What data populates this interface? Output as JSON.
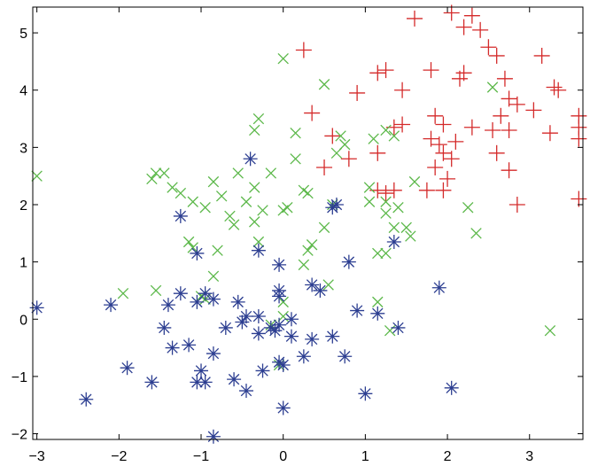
{
  "chart_data": {
    "type": "scatter",
    "title": "",
    "xlabel": "",
    "ylabel": "",
    "xlim": [
      -3.05,
      3.65
    ],
    "ylim": [
      -2.1,
      5.45
    ],
    "grid": false,
    "legend": "none",
    "x_ticks": [
      -3,
      -2,
      -1,
      0,
      1,
      2,
      3
    ],
    "y_ticks": [
      -2,
      -1,
      0,
      1,
      2,
      3,
      4,
      5
    ],
    "series": [
      {
        "marker": "plus",
        "color": "#d42a2a",
        "points": [
          [
            1.6,
            5.25
          ],
          [
            2.05,
            5.35
          ],
          [
            2.3,
            5.3
          ],
          [
            2.2,
            5.1
          ],
          [
            2.4,
            5.05
          ],
          [
            0.25,
            4.7
          ],
          [
            2.5,
            4.75
          ],
          [
            2.6,
            4.6
          ],
          [
            1.15,
            4.3
          ],
          [
            1.25,
            4.35
          ],
          [
            1.8,
            4.35
          ],
          [
            2.2,
            4.3
          ],
          [
            2.15,
            4.2
          ],
          [
            2.7,
            4.2
          ],
          [
            3.15,
            4.6
          ],
          [
            3.3,
            4.05
          ],
          [
            3.35,
            4.0
          ],
          [
            0.9,
            3.95
          ],
          [
            1.45,
            4.0
          ],
          [
            2.75,
            3.85
          ],
          [
            2.85,
            3.75
          ],
          [
            2.65,
            3.55
          ],
          [
            3.05,
            3.65
          ],
          [
            3.6,
            3.55
          ],
          [
            0.35,
            3.6
          ],
          [
            1.35,
            3.35
          ],
          [
            1.45,
            3.4
          ],
          [
            1.85,
            3.55
          ],
          [
            1.95,
            3.4
          ],
          [
            2.3,
            3.35
          ],
          [
            2.55,
            3.3
          ],
          [
            2.75,
            3.3
          ],
          [
            3.6,
            3.35
          ],
          [
            3.25,
            3.25
          ],
          [
            3.6,
            3.15
          ],
          [
            0.6,
            3.2
          ],
          [
            1.8,
            3.15
          ],
          [
            1.9,
            3.05
          ],
          [
            2.1,
            3.1
          ],
          [
            1.95,
            2.9
          ],
          [
            2.6,
            2.9
          ],
          [
            1.15,
            2.9
          ],
          [
            0.8,
            2.8
          ],
          [
            2.05,
            2.8
          ],
          [
            1.85,
            2.65
          ],
          [
            0.5,
            2.65
          ],
          [
            2.75,
            2.6
          ],
          [
            2.0,
            2.45
          ],
          [
            1.15,
            2.25
          ],
          [
            1.25,
            2.2
          ],
          [
            1.35,
            2.25
          ],
          [
            1.75,
            2.25
          ],
          [
            1.95,
            2.25
          ],
          [
            2.85,
            2.0
          ],
          [
            3.6,
            2.1
          ]
        ]
      },
      {
        "marker": "x",
        "color": "#5cb84a",
        "points": [
          [
            -3.0,
            2.5
          ],
          [
            0.0,
            4.55
          ],
          [
            0.5,
            4.1
          ],
          [
            2.55,
            4.05
          ],
          [
            1.25,
            3.3
          ],
          [
            -0.3,
            3.5
          ],
          [
            -0.35,
            3.3
          ],
          [
            0.15,
            3.25
          ],
          [
            0.7,
            3.2
          ],
          [
            1.1,
            3.15
          ],
          [
            1.35,
            3.2
          ],
          [
            0.75,
            3.05
          ],
          [
            0.65,
            2.9
          ],
          [
            0.15,
            2.8
          ],
          [
            -1.55,
            2.55
          ],
          [
            -1.45,
            2.55
          ],
          [
            -0.55,
            2.55
          ],
          [
            -0.15,
            2.55
          ],
          [
            -1.6,
            2.45
          ],
          [
            -0.85,
            2.4
          ],
          [
            -1.35,
            2.3
          ],
          [
            -1.25,
            2.2
          ],
          [
            -0.75,
            2.15
          ],
          [
            -0.35,
            2.3
          ],
          [
            1.05,
            2.3
          ],
          [
            0.25,
            2.25
          ],
          [
            0.3,
            2.2
          ],
          [
            1.6,
            2.4
          ],
          [
            -1.1,
            2.05
          ],
          [
            -0.95,
            1.95
          ],
          [
            -0.45,
            2.05
          ],
          [
            -0.25,
            1.9
          ],
          [
            0.05,
            1.95
          ],
          [
            0.0,
            1.9
          ],
          [
            0.6,
            2.0
          ],
          [
            1.25,
            2.05
          ],
          [
            1.4,
            1.95
          ],
          [
            1.25,
            1.85
          ],
          [
            1.05,
            2.05
          ],
          [
            2.25,
            1.95
          ],
          [
            -0.65,
            1.8
          ],
          [
            -0.6,
            1.65
          ],
          [
            -0.35,
            1.7
          ],
          [
            0.5,
            1.6
          ],
          [
            1.35,
            1.6
          ],
          [
            1.5,
            1.6
          ],
          [
            -1.15,
            1.35
          ],
          [
            -1.1,
            1.25
          ],
          [
            -0.3,
            1.35
          ],
          [
            0.35,
            1.3
          ],
          [
            1.55,
            1.45
          ],
          [
            2.35,
            1.5
          ],
          [
            -0.8,
            1.2
          ],
          [
            0.3,
            1.2
          ],
          [
            1.25,
            1.15
          ],
          [
            1.15,
            1.15
          ],
          [
            0.25,
            0.95
          ],
          [
            -0.85,
            0.75
          ],
          [
            0.55,
            0.6
          ],
          [
            -1.55,
            0.5
          ],
          [
            -1.95,
            0.45
          ],
          [
            -1.0,
            0.4
          ],
          [
            -0.95,
            0.35
          ],
          [
            0.0,
            0.3
          ],
          [
            1.15,
            0.3
          ],
          [
            0.0,
            0.05
          ],
          [
            -0.15,
            -0.1
          ],
          [
            1.3,
            -0.2
          ],
          [
            3.25,
            -0.2
          ],
          [
            -0.05,
            -0.8
          ]
        ]
      },
      {
        "marker": "asterisk",
        "color": "#2c3e91",
        "points": [
          [
            -0.4,
            2.8
          ],
          [
            0.6,
            1.95
          ],
          [
            0.65,
            2.0
          ],
          [
            -1.25,
            1.8
          ],
          [
            1.35,
            1.35
          ],
          [
            -0.3,
            1.2
          ],
          [
            -1.05,
            1.15
          ],
          [
            -0.05,
            0.95
          ],
          [
            0.8,
            1.0
          ],
          [
            1.9,
            0.55
          ],
          [
            0.35,
            0.6
          ],
          [
            0.45,
            0.5
          ],
          [
            -0.05,
            0.5
          ],
          [
            -0.05,
            0.4
          ],
          [
            -1.25,
            0.45
          ],
          [
            -0.95,
            0.45
          ],
          [
            -1.05,
            0.3
          ],
          [
            -0.85,
            0.35
          ],
          [
            -1.4,
            0.25
          ],
          [
            -0.55,
            0.3
          ],
          [
            -2.1,
            0.25
          ],
          [
            -3.0,
            0.2
          ],
          [
            0.9,
            0.15
          ],
          [
            1.15,
            0.1
          ],
          [
            -0.45,
            0.05
          ],
          [
            -0.3,
            0.05
          ],
          [
            0.1,
            0.0
          ],
          [
            -0.5,
            -0.05
          ],
          [
            -0.7,
            -0.15
          ],
          [
            -0.05,
            -0.1
          ],
          [
            -0.1,
            -0.2
          ],
          [
            -0.15,
            -0.15
          ],
          [
            -1.45,
            -0.15
          ],
          [
            -0.3,
            -0.25
          ],
          [
            0.1,
            -0.3
          ],
          [
            0.35,
            -0.35
          ],
          [
            0.6,
            -0.3
          ],
          [
            1.4,
            -0.15
          ],
          [
            -1.15,
            -0.45
          ],
          [
            -1.35,
            -0.5
          ],
          [
            -0.85,
            -0.6
          ],
          [
            0.25,
            -0.65
          ],
          [
            0.75,
            -0.65
          ],
          [
            -1.0,
            -0.9
          ],
          [
            -0.25,
            -0.9
          ],
          [
            -0.05,
            -0.75
          ],
          [
            0.0,
            -0.8
          ],
          [
            -1.9,
            -0.85
          ],
          [
            -1.05,
            -1.1
          ],
          [
            -0.95,
            -1.1
          ],
          [
            -0.6,
            -1.05
          ],
          [
            -1.6,
            -1.1
          ],
          [
            -0.45,
            -1.25
          ],
          [
            2.05,
            -1.2
          ],
          [
            1.0,
            -1.3
          ],
          [
            -2.4,
            -1.4
          ],
          [
            0.0,
            -1.55
          ],
          [
            -0.85,
            -2.05
          ]
        ]
      }
    ]
  }
}
